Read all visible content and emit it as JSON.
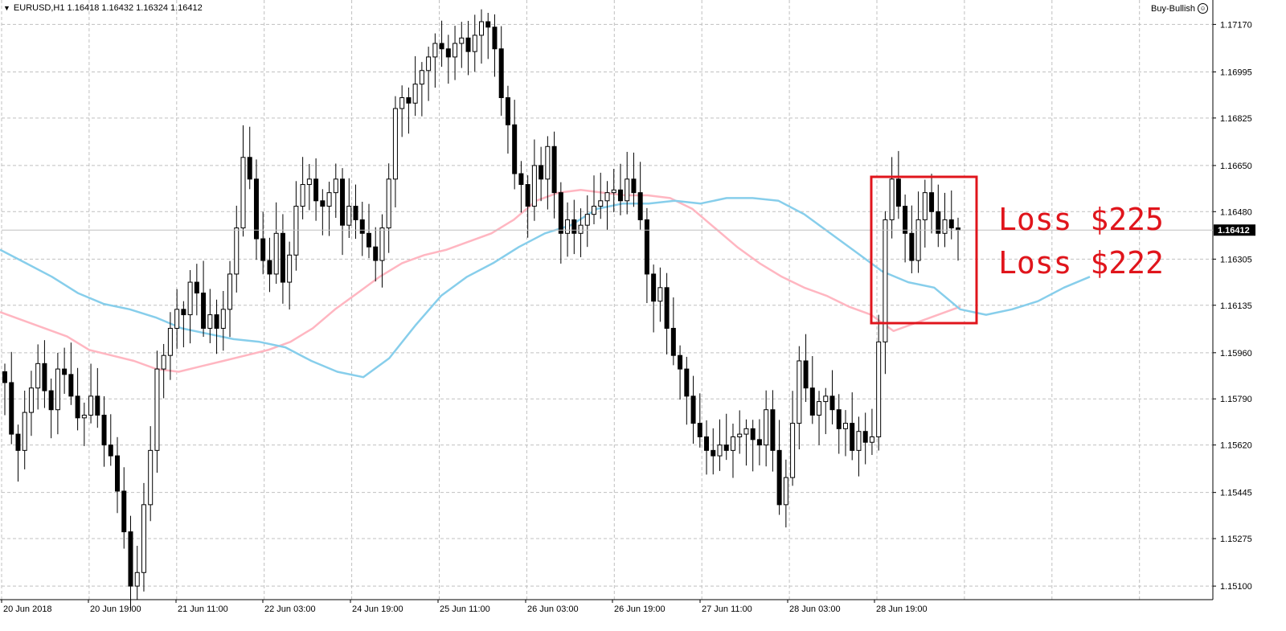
{
  "header": {
    "menu_icon": "triangle-down-icon",
    "symbol_line": "EURUSD,H1  1.16418 1.16432 1.16324 1.16412"
  },
  "expert": {
    "label": "Buy-Bullish",
    "icon": "smiley-icon"
  },
  "annotation": {
    "lines": [
      "Loss $225",
      "Loss $222"
    ],
    "color": "#e0151c"
  },
  "chart_data": {
    "type": "candlestick",
    "symbol": "EURUSD",
    "timeframe": "H1",
    "current_price": "1.16412",
    "ylim": [
      1.1505,
      1.1726
    ],
    "y_ticks": [
      "1.17170",
      "1.16995",
      "1.16825",
      "1.16650",
      "1.16480",
      "1.16305",
      "1.16135",
      "1.15960",
      "1.15790",
      "1.15620",
      "1.15445",
      "1.15275",
      "1.15100"
    ],
    "x_ticks": [
      "20 Jun 2018",
      "20 Jun 19:00",
      "21 Jun 11:00",
      "22 Jun 03:00",
      "24 Jun 19:00",
      "25 Jun 11:00",
      "26 Jun 03:00",
      "26 Jun 19:00",
      "27 Jun 11:00",
      "28 Jun 03:00",
      "28 Jun 19:00"
    ],
    "grid": true,
    "colors": {
      "bull_body": "#ffffff",
      "bear_body": "#000000",
      "wick": "#000000",
      "ma_fast": "#87ceeb",
      "ma_slow": "#ffb6c1",
      "grid": "#c0c0c0"
    },
    "closes": [
      1.1585,
      1.1566,
      1.156,
      1.1574,
      1.1583,
      1.1592,
      1.1582,
      1.1575,
      1.159,
      1.1588,
      1.158,
      1.1572,
      1.1573,
      1.158,
      1.1573,
      1.1562,
      1.1558,
      1.1545,
      1.153,
      1.151,
      1.1515,
      1.154,
      1.156,
      1.159,
      1.1595,
      1.1605,
      1.1612,
      1.161,
      1.1622,
      1.1618,
      1.1605,
      1.161,
      1.1605,
      1.1612,
      1.1625,
      1.1642,
      1.1668,
      1.166,
      1.1638,
      1.163,
      1.1625,
      1.164,
      1.1622,
      1.1632,
      1.165,
      1.1658,
      1.166,
      1.1652,
      1.165,
      1.1655,
      1.166,
      1.1643,
      1.165,
      1.1645,
      1.164,
      1.1635,
      1.163,
      1.1642,
      1.166,
      1.1686,
      1.169,
      1.1688,
      1.1695,
      1.17,
      1.1705,
      1.171,
      1.1708,
      1.1705,
      1.171,
      1.1712,
      1.1707,
      1.1713,
      1.1718,
      1.1716,
      1.1708,
      1.169,
      1.168,
      1.1662,
      1.1658,
      1.165,
      1.1665,
      1.166,
      1.1672,
      1.1655,
      1.164,
      1.1645,
      1.164,
      1.1643,
      1.1647,
      1.165,
      1.1652,
      1.1655,
      1.1656,
      1.1652,
      1.166,
      1.1655,
      1.1645,
      1.1625,
      1.1615,
      1.162,
      1.1605,
      1.1595,
      1.159,
      1.158,
      1.157,
      1.1565,
      1.156,
      1.1558,
      1.1562,
      1.156,
      1.1565,
      1.1566,
      1.1568,
      1.1564,
      1.1562,
      1.1575,
      1.156,
      1.154,
      1.155,
      1.157,
      1.1593,
      1.1583,
      1.1573,
      1.1578,
      1.158,
      1.1575,
      1.1568,
      1.157,
      1.156,
      1.1567,
      1.1563,
      1.1565,
      1.16,
      1.1645,
      1.166,
      1.165,
      1.164,
      1.163,
      1.1645,
      1.1655,
      1.1648,
      1.164,
      1.1645,
      1.1642,
      1.16412
    ],
    "ma_fast": [
      1.1634,
      1.1629,
      1.1624,
      1.1618,
      1.1614,
      1.1612,
      1.1609,
      1.1605,
      1.1603,
      1.1601,
      1.16,
      1.1598,
      1.1593,
      1.1589,
      1.1587,
      1.1594,
      1.1606,
      1.1617,
      1.1624,
      1.1629,
      1.1635,
      1.164,
      1.1643,
      1.1649,
      1.1651,
      1.1651,
      1.1652,
      1.1651,
      1.1653,
      1.1653,
      1.1652,
      1.1647,
      1.164,
      1.1633,
      1.1626,
      1.1622,
      1.162,
      1.1612,
      1.161,
      1.1612,
      1.1615,
      1.162,
      1.1624
    ],
    "ma_slow": [
      1.1611,
      1.1608,
      1.1605,
      1.1602,
      1.1597,
      1.1595,
      1.1593,
      1.159,
      1.1589,
      1.1591,
      1.1593,
      1.1595,
      1.1597,
      1.16,
      1.1605,
      1.1612,
      1.1618,
      1.1624,
      1.1629,
      1.1632,
      1.1634,
      1.1637,
      1.164,
      1.1645,
      1.1652,
      1.1655,
      1.1656,
      1.1655,
      1.1654,
      1.1654,
      1.1653,
      1.1649,
      1.1642,
      1.1635,
      1.1629,
      1.1624,
      1.162,
      1.1617,
      1.1613,
      1.161,
      1.1604,
      1.1607,
      1.161,
      1.1613
    ]
  }
}
